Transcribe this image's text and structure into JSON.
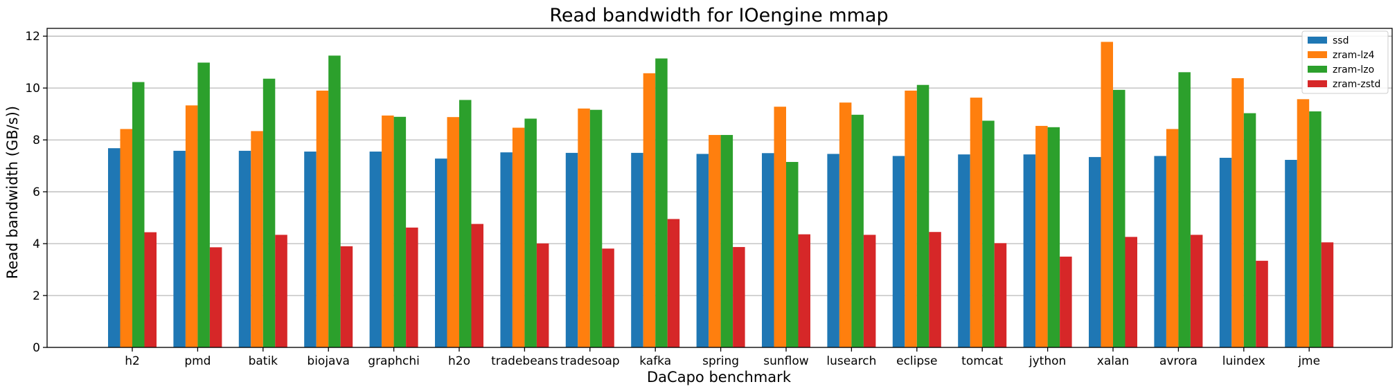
{
  "chart_data": {
    "type": "bar",
    "title": "Read bandwidth for IOengine mmap",
    "xlabel": "DaCapo benchmark",
    "ylabel": "Read bandwidth (GB/s))",
    "ylim": [
      0,
      12.3
    ],
    "yticks": [
      0,
      2,
      4,
      6,
      8,
      10,
      12
    ],
    "grid": "y",
    "legend_position": "top-right",
    "categories": [
      "h2",
      "pmd",
      "batik",
      "biojava",
      "graphchi",
      "h2o",
      "tradebeans",
      "tradesoap",
      "kafka",
      "spring",
      "sunflow",
      "lusearch",
      "eclipse",
      "tomcat",
      "jython",
      "xalan",
      "avrora",
      "luindex",
      "jme"
    ],
    "series": [
      {
        "name": "ssd",
        "color": "#1f77b4",
        "values": [
          7.68,
          7.58,
          7.58,
          7.55,
          7.55,
          7.28,
          7.52,
          7.5,
          7.5,
          7.46,
          7.49,
          7.46,
          7.38,
          7.44,
          7.44,
          7.34,
          7.38,
          7.31,
          7.23
        ]
      },
      {
        "name": "zram-lz4",
        "color": "#ff7f0e",
        "values": [
          8.42,
          9.33,
          8.34,
          9.9,
          8.94,
          8.88,
          8.47,
          9.21,
          10.57,
          8.19,
          9.28,
          9.44,
          9.9,
          9.63,
          8.54,
          11.78,
          8.42,
          10.38,
          9.57
        ]
      },
      {
        "name": "zram-lzo",
        "color": "#2ca02c",
        "values": [
          10.23,
          10.98,
          10.36,
          11.25,
          8.89,
          9.54,
          8.82,
          9.16,
          11.14,
          8.19,
          7.15,
          8.97,
          10.12,
          8.74,
          8.49,
          9.93,
          10.61,
          9.03,
          9.1
        ]
      },
      {
        "name": "zram-zstd",
        "color": "#d62728",
        "values": [
          4.44,
          3.86,
          4.34,
          3.9,
          4.62,
          4.76,
          4.01,
          3.81,
          4.95,
          3.87,
          4.36,
          4.34,
          4.45,
          4.02,
          3.5,
          4.26,
          4.34,
          3.34,
          4.05
        ]
      }
    ]
  }
}
